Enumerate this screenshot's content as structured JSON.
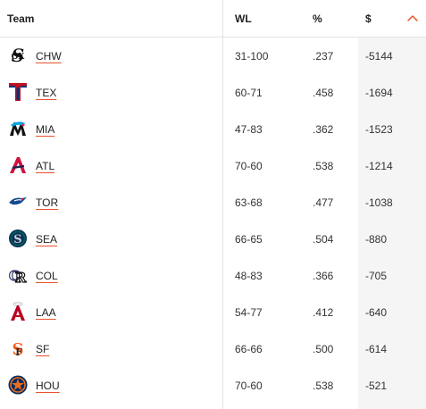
{
  "header": {
    "team": "Team",
    "wl": "WL",
    "pct": "%",
    "dollar": "$"
  },
  "rows": [
    {
      "team": "CHW",
      "wl": "31-100",
      "pct": ".237",
      "dollar": "-5144",
      "logo": "white-sox-logo-icon"
    },
    {
      "team": "TEX",
      "wl": "60-71",
      "pct": ".458",
      "dollar": "-1694",
      "logo": "rangers-logo-icon"
    },
    {
      "team": "MIA",
      "wl": "47-83",
      "pct": ".362",
      "dollar": "-1523",
      "logo": "marlins-logo-icon"
    },
    {
      "team": "ATL",
      "wl": "70-60",
      "pct": ".538",
      "dollar": "-1214",
      "logo": "braves-logo-icon"
    },
    {
      "team": "TOR",
      "wl": "63-68",
      "pct": ".477",
      "dollar": "-1038",
      "logo": "blue-jays-logo-icon"
    },
    {
      "team": "SEA",
      "wl": "66-65",
      "pct": ".504",
      "dollar": "-880",
      "logo": "mariners-logo-icon"
    },
    {
      "team": "COL",
      "wl": "48-83",
      "pct": ".366",
      "dollar": "-705",
      "logo": "rockies-logo-icon"
    },
    {
      "team": "LAA",
      "wl": "54-77",
      "pct": ".412",
      "dollar": "-640",
      "logo": "angels-logo-icon"
    },
    {
      "team": "SF",
      "wl": "66-66",
      "pct": ".500",
      "dollar": "-614",
      "logo": "giants-logo-icon"
    },
    {
      "team": "HOU",
      "wl": "70-60",
      "pct": ".538",
      "dollar": "-521",
      "logo": "astros-logo-icon"
    }
  ],
  "colors": {
    "accent": "#e8532d",
    "divider": "#e3e3e3",
    "sorted_column_bg": "#f5f5f5"
  },
  "sort": {
    "icon": "chevron-up-icon"
  }
}
